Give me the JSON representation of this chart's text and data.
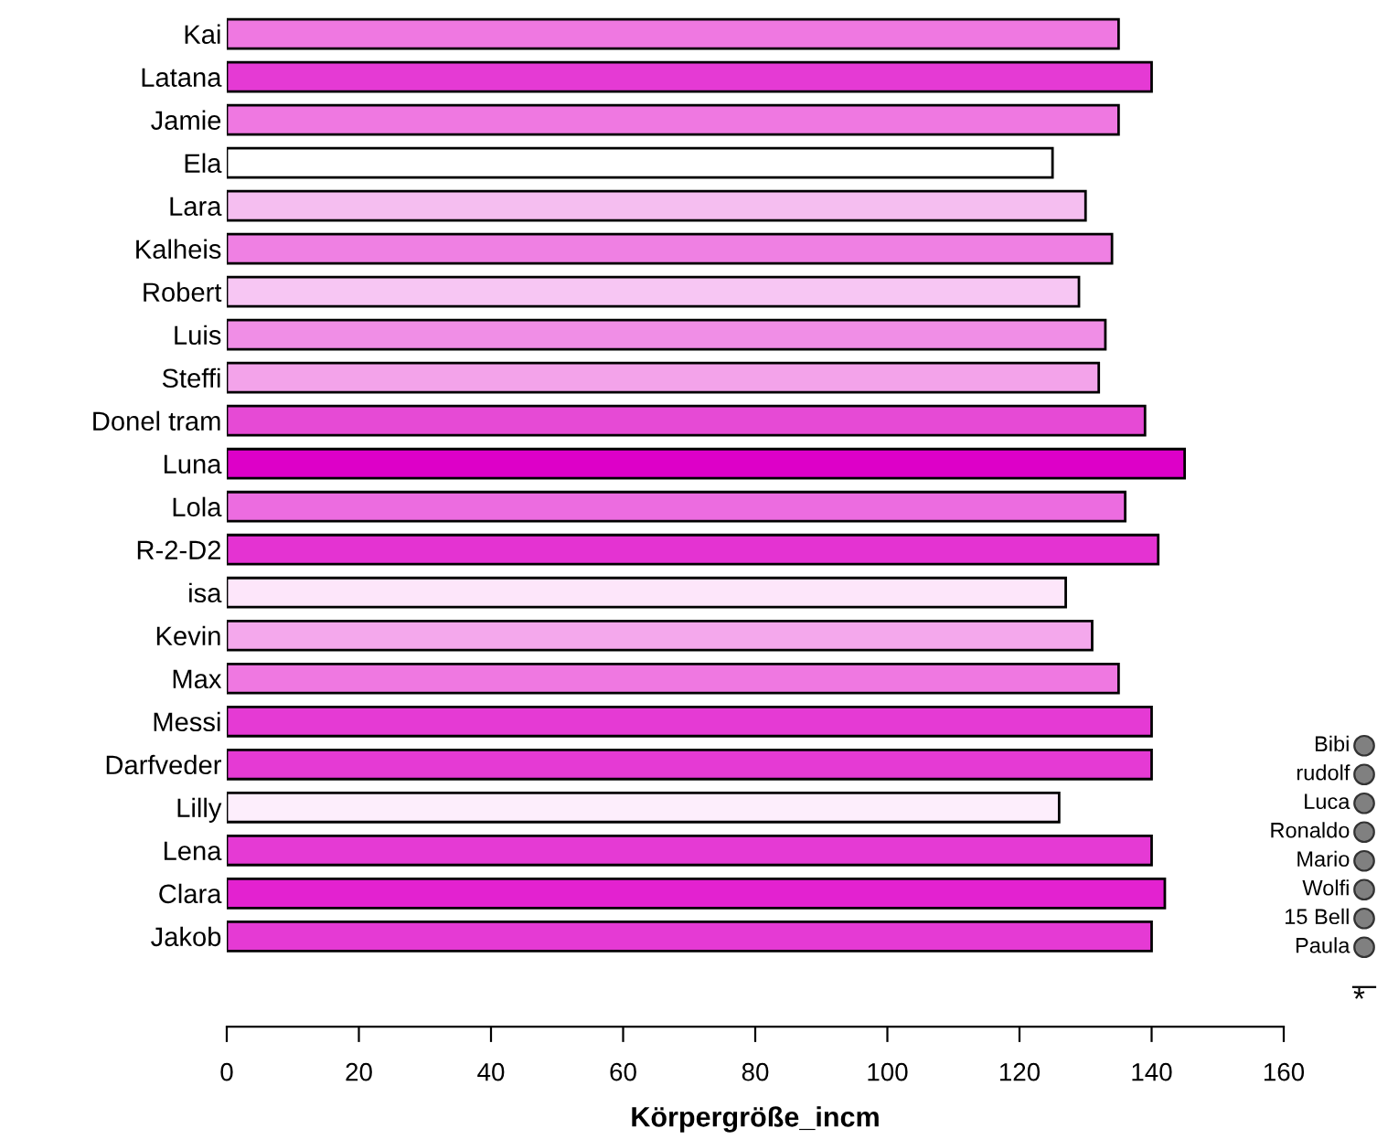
{
  "chart_data": [
    {
      "type": "bar",
      "orientation": "horizontal",
      "xlabel": "Körpergröße_incm",
      "categories": [
        "Kai",
        "Latana",
        "Jamie",
        "Ela",
        "Lara",
        "Kalheis",
        "Robert",
        "Luis",
        "Steffi",
        "Donel tram",
        "Luna",
        "Lola",
        "R-2-D2",
        "isa",
        "Kevin",
        "Max",
        "Messi",
        "Darfveder",
        "Lilly",
        "Lena",
        "Clara",
        "Jakob"
      ],
      "values": [
        135,
        140,
        135,
        125,
        130,
        134,
        129,
        133,
        132,
        139,
        145,
        136,
        141,
        127,
        131,
        135,
        140,
        140,
        126,
        140,
        142,
        140
      ],
      "colors": [
        "#ef78e1",
        "#e53ad4",
        "#ef78e1",
        "#ffffff",
        "#f5bef0",
        "#ef80e3",
        "#f7c6f3",
        "#f08ee6",
        "#f3a3ea",
        "#e64ad5",
        "#dd00c8",
        "#ec6ce0",
        "#e433d2",
        "#fde6fa",
        "#f4a8ec",
        "#ef78e1",
        "#e53ad4",
        "#e53ad4",
        "#fdeefc",
        "#e53ad4",
        "#e322d0",
        "#e53ad4"
      ],
      "xlim": [
        0,
        160
      ],
      "xticks": [
        0,
        20,
        40,
        60,
        80,
        100,
        120,
        140,
        160
      ],
      "grid": false,
      "legend": false
    },
    {
      "type": "other",
      "xlabel": "*",
      "annotations": [
        "Bibi",
        "rudolf",
        "Luca",
        "Ronaldo",
        "Mario",
        "Wolfi",
        "15 Bell",
        "Paula"
      ]
    }
  ]
}
